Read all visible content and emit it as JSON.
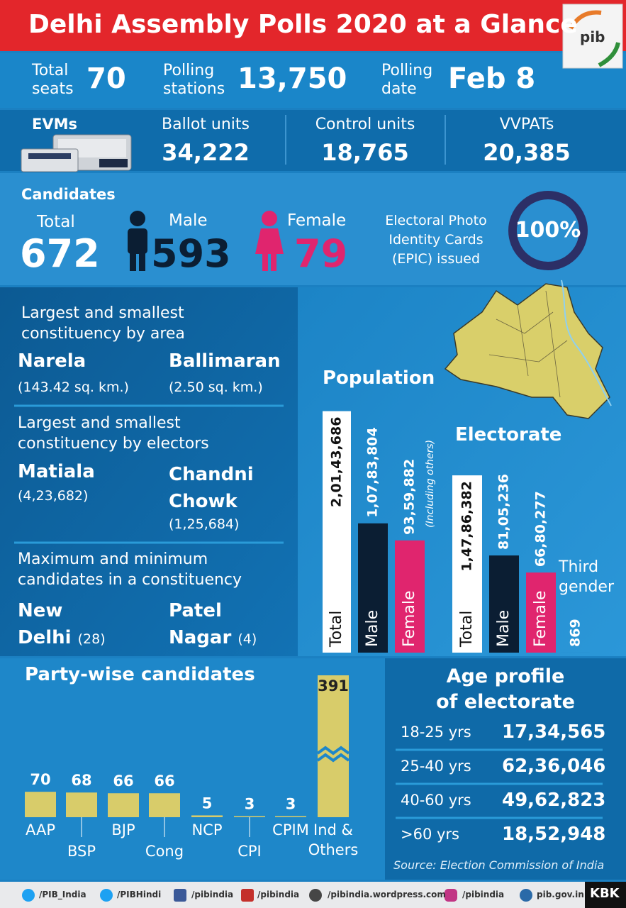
{
  "title": "Delhi Assembly Polls 2020 at a Glance",
  "logo": "pib",
  "summary": [
    {
      "label": [
        "Total",
        "seats"
      ],
      "value": "70"
    },
    {
      "label": [
        "Polling",
        "stations"
      ],
      "value": "13,750"
    },
    {
      "label": [
        "Polling",
        "date"
      ],
      "value": "Feb 8"
    }
  ],
  "evms": {
    "label": "EVMs",
    "items": [
      {
        "label": "Ballot units",
        "value": "34,222"
      },
      {
        "label": "Control units",
        "value": "18,765"
      },
      {
        "label": "VVPATs",
        "value": "20,385"
      }
    ]
  },
  "candidates": {
    "label": "Candidates",
    "total_label": "Total",
    "total": "672",
    "male_label": "Male",
    "male": "593",
    "female_label": "Female",
    "female": "79",
    "epic_label": [
      "Electoral Photo",
      "Identity Cards",
      "(EPIC) issued"
    ],
    "epic": "100%"
  },
  "constituencies": [
    {
      "heading": [
        "Largest and smallest",
        "constituency by area"
      ],
      "items": [
        {
          "name": [
            "Narela"
          ],
          "detail": "(143.42 sq. km.)"
        },
        {
          "name": [
            "Ballimaran"
          ],
          "detail": "(2.50 sq. km.)"
        }
      ]
    },
    {
      "heading": [
        "Largest and smallest",
        "constituency by electors"
      ],
      "items": [
        {
          "name": [
            "Matiala"
          ],
          "detail": "(4,23,682)"
        },
        {
          "name": [
            "Chandni",
            "Chowk"
          ],
          "detail": "(1,25,684)"
        }
      ]
    },
    {
      "heading": [
        "Maximum and minimum",
        "candidates in a constituency"
      ],
      "items": [
        {
          "name": [
            "New",
            "Delhi"
          ],
          "detail": "(28)"
        },
        {
          "name": [
            "Patel",
            "Nagar"
          ],
          "detail": "(4)"
        }
      ]
    }
  ],
  "population": {
    "title": "Population",
    "note": "(Including others)",
    "bars": [
      {
        "label": "Total",
        "value": 20143686,
        "value_label": "2,01,43,686"
      },
      {
        "label": "Male",
        "value": 10783804,
        "value_label": "1,07,83,804"
      },
      {
        "label": "Female",
        "value": 9359882,
        "value_label": "93,59,882"
      }
    ]
  },
  "electorate": {
    "title": "Electorate",
    "bars": [
      {
        "label": "Total",
        "value": 14786382,
        "value_label": "1,47,86,382"
      },
      {
        "label": "Male",
        "value": 8105236,
        "value_label": "81,05,236"
      },
      {
        "label": "Female",
        "value": 6680277,
        "value_label": "66,80,277"
      },
      {
        "label": "Third gender",
        "value": 869
      }
    ]
  },
  "party": {
    "title": "Party-wise candidates",
    "categories": [
      "AAP",
      "BSP",
      "BJP",
      "Cong",
      "NCP",
      "CPI",
      "CPIM",
      "Ind & Others"
    ],
    "values": [
      70,
      68,
      66,
      66,
      5,
      3,
      3,
      391
    ]
  },
  "age": {
    "title": [
      "Age profile",
      "of electorate"
    ],
    "rows": [
      {
        "label": "18-25 yrs",
        "value": "17,34,565"
      },
      {
        "label": "25-40 yrs",
        "value": "62,36,046"
      },
      {
        "label": "40-60 yrs",
        "value": "49,62,823"
      },
      {
        "label": ">60 yrs",
        "value": "18,52,948"
      }
    ],
    "source": "Source: Election Commission of India"
  },
  "footer": [
    "/PIB_India",
    "/PIBHindi",
    "/pibindia",
    "/pibindia",
    "/pibindia.wordpress.com",
    "/pibindia",
    "pib.gov.in"
  ],
  "credit": "KBK"
}
